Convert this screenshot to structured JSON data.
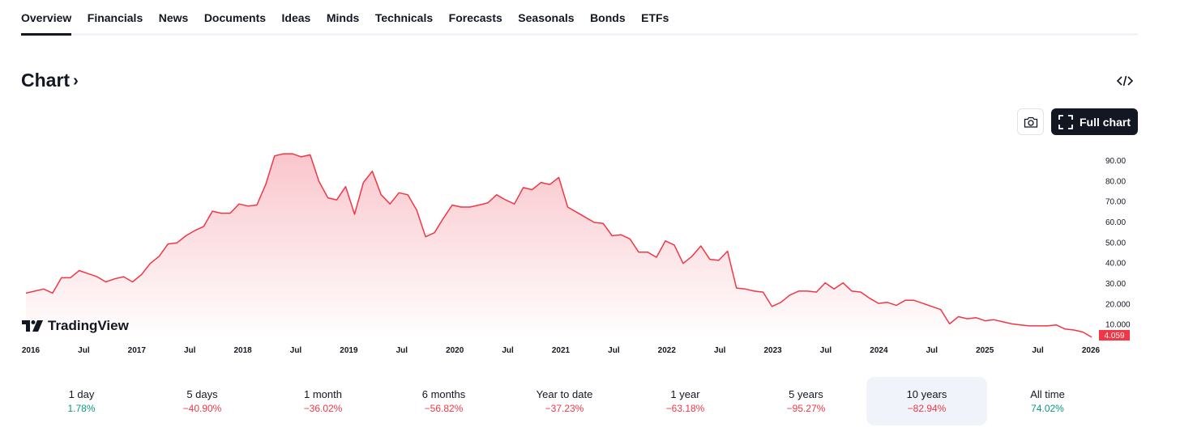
{
  "tabs": [
    "Overview",
    "Financials",
    "News",
    "Documents",
    "Ideas",
    "Minds",
    "Technicals",
    "Forecasts",
    "Seasonals",
    "Bonds",
    "ETFs"
  ],
  "active_tab": "Overview",
  "section": {
    "title": "Chart",
    "chevron": "›"
  },
  "buttons": {
    "full_chart": "Full chart",
    "snapshot_icon": "camera-icon",
    "embed_icon": "code-icon"
  },
  "brand": {
    "logo_text": "TradingView"
  },
  "colors": {
    "line": "#f23645",
    "area_top": "#f9c6cc",
    "area_bottom": "#ffffff",
    "last_price_bg": "#f23645",
    "positive": "#089981",
    "negative": "#f23645"
  },
  "chart_data": {
    "type": "area",
    "x_tick_labels": [
      "2016",
      "Jul",
      "2017",
      "Jul",
      "2018",
      "Jul",
      "2019",
      "Jul",
      "2020",
      "Jul",
      "2021",
      "Jul",
      "2022",
      "Jul",
      "2023",
      "Jul",
      "2024",
      "Jul",
      "2025",
      "Jul",
      "2026"
    ],
    "y_tick_labels": [
      "90.00",
      "80.00",
      "70.00",
      "60.00",
      "50.00",
      "40.00",
      "30.00",
      "20.000",
      "10.000"
    ],
    "ylim": [
      0,
      100
    ],
    "last_price_label": "4.059",
    "start_year": 2016,
    "series": [
      {
        "values": [
          25.5,
          26.5,
          27.5,
          25.5,
          33,
          33,
          36.5,
          35,
          33.5,
          31,
          32.5,
          33.5,
          31,
          34.5,
          40,
          43.5,
          49.5,
          50,
          53.5,
          56,
          58,
          65.5,
          64.5,
          64.5,
          69,
          68,
          68.5,
          78.5,
          92.5,
          93.5,
          93.5,
          92,
          93,
          80,
          72,
          71,
          77.5,
          64,
          79.5,
          85,
          73.5,
          69,
          74.5,
          73.5,
          66,
          53,
          55,
          62,
          68.5,
          67.5,
          67.5,
          68.5,
          69.5,
          73.5,
          71,
          69,
          77,
          76,
          79.5,
          78.5,
          82,
          67.5,
          65,
          62.5,
          60,
          59.5,
          53.5,
          54,
          52,
          45.5,
          45.5,
          43,
          51,
          49,
          40,
          43.5,
          48.5,
          42,
          41.5,
          46,
          28,
          27.5,
          26.5,
          26,
          19,
          21,
          24.5,
          26.5,
          26.5,
          26,
          30.5,
          27.5,
          30.5,
          26.5,
          26,
          23,
          20.5,
          21,
          19.5,
          22,
          22,
          20.5,
          19,
          17.5,
          10.5,
          14,
          13,
          13.5,
          12,
          12.5,
          11.5,
          10.5,
          10,
          9.5,
          9.5,
          9.5,
          10,
          8,
          7.5,
          6.5,
          4
        ]
      }
    ]
  },
  "periods": [
    {
      "label": "1 day",
      "value": "1.78%",
      "sign": "pos"
    },
    {
      "label": "5 days",
      "value": "−40.90%",
      "sign": "neg"
    },
    {
      "label": "1 month",
      "value": "−36.02%",
      "sign": "neg"
    },
    {
      "label": "6 months",
      "value": "−56.82%",
      "sign": "neg"
    },
    {
      "label": "Year to date",
      "value": "−37.23%",
      "sign": "neg"
    },
    {
      "label": "1 year",
      "value": "−63.18%",
      "sign": "neg"
    },
    {
      "label": "5 years",
      "value": "−95.27%",
      "sign": "neg"
    },
    {
      "label": "10 years",
      "value": "−82.94%",
      "sign": "neg"
    },
    {
      "label": "All time",
      "value": "74.02%",
      "sign": "pos"
    }
  ],
  "active_period": "10 years"
}
